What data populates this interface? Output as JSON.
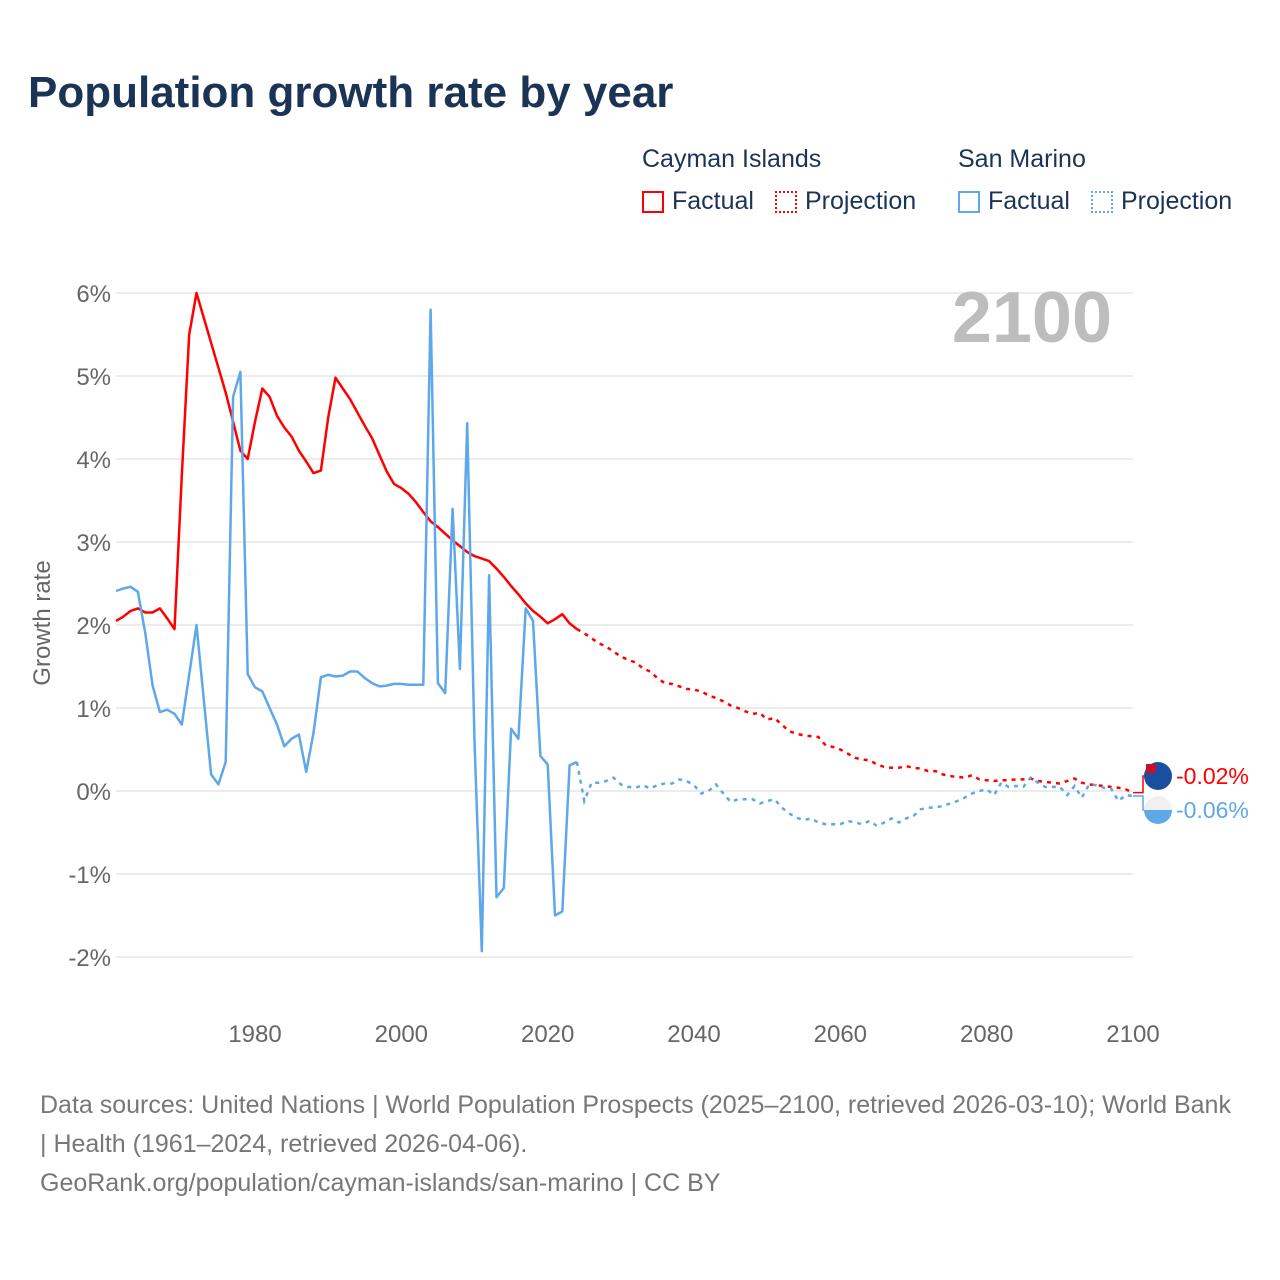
{
  "chart_data": {
    "type": "line",
    "title": "Population growth rate by year",
    "ylabel": "Growth rate",
    "xlabel": "",
    "xlim": [
      1961,
      2100
    ],
    "ylim": [
      -2.4,
      6.2
    ],
    "x_ticks": [
      "1980",
      "2000",
      "2020",
      "2040",
      "2060",
      "2080",
      "2100"
    ],
    "y_ticks": [
      {
        "v": 6,
        "label": "6%"
      },
      {
        "v": 5,
        "label": "5%"
      },
      {
        "v": 4,
        "label": "4%"
      },
      {
        "v": 3,
        "label": "3%"
      },
      {
        "v": 2,
        "label": "2%"
      },
      {
        "v": 1,
        "label": "1%"
      },
      {
        "v": 0,
        "label": "0%"
      },
      {
        "v": -1,
        "label": "-1%"
      },
      {
        "v": -2,
        "label": "-2%"
      }
    ],
    "grid": true,
    "year_watermark": "2100",
    "legend_placement": "top-right",
    "series": [
      {
        "name": "Cayman Islands",
        "color": "#ff0000",
        "end_label": "-0.02%",
        "factual": {
          "label": "Factual",
          "start": 1961,
          "values": [
            2.05,
            2.1,
            2.17,
            2.2,
            2.15,
            2.15,
            2.2,
            2.08,
            1.95,
            3.8,
            5.5,
            6.0,
            5.7,
            5.4,
            5.1,
            4.8,
            4.45,
            4.1,
            4.0,
            4.45,
            4.85,
            4.75,
            4.52,
            4.38,
            4.27,
            4.1,
            3.97,
            3.83,
            3.86,
            4.5,
            4.98,
            4.85,
            4.72,
            4.56,
            4.4,
            4.25,
            4.05,
            3.85,
            3.7,
            3.65,
            3.58,
            3.48,
            3.36,
            3.25,
            3.18,
            3.1,
            3.02,
            2.95,
            2.88,
            2.83,
            2.8,
            2.77,
            2.68,
            2.58,
            2.47,
            2.37,
            2.26,
            2.17,
            2.1,
            2.02,
            2.07,
            2.13,
            2.02,
            1.95
          ]
        },
        "projection": {
          "label": "Projection",
          "start": 2024,
          "values": [
            1.95,
            1.9,
            1.84,
            1.78,
            1.74,
            1.68,
            1.62,
            1.58,
            1.55,
            1.48,
            1.44,
            1.36,
            1.3,
            1.29,
            1.26,
            1.23,
            1.22,
            1.2,
            1.15,
            1.12,
            1.08,
            1.03,
            1.0,
            0.96,
            0.93,
            0.94,
            0.86,
            0.88,
            0.8,
            0.72,
            0.69,
            0.67,
            0.66,
            0.65,
            0.55,
            0.53,
            0.5,
            0.45,
            0.4,
            0.38,
            0.37,
            0.32,
            0.29,
            0.28,
            0.28,
            0.3,
            0.28,
            0.27,
            0.24,
            0.24,
            0.2,
            0.18,
            0.17,
            0.16,
            0.19,
            0.14,
            0.13,
            0.12,
            0.13,
            0.13,
            0.14,
            0.14,
            0.15,
            0.12,
            0.11,
            0.1,
            0.09,
            0.12,
            0.15,
            0.1,
            0.08,
            0.07,
            0.06,
            0.05,
            0.04,
            0.02,
            -0.02
          ]
        }
      },
      {
        "name": "San Marino",
        "color": "#5ea8ea",
        "end_label": "-0.06%",
        "factual": {
          "label": "Factual",
          "start": 1961,
          "values": [
            2.41,
            2.44,
            2.46,
            2.4,
            1.9,
            1.27,
            0.95,
            0.98,
            0.93,
            0.8,
            1.4,
            2.0,
            1.1,
            0.2,
            0.08,
            0.35,
            4.75,
            5.05,
            1.41,
            1.25,
            1.2,
            1.0,
            0.8,
            0.54,
            0.63,
            0.68,
            0.23,
            0.7,
            1.37,
            1.4,
            1.38,
            1.39,
            1.44,
            1.44,
            1.36,
            1.3,
            1.26,
            1.27,
            1.29,
            1.29,
            1.28,
            1.28,
            1.28,
            5.8,
            1.3,
            1.18,
            3.4,
            1.47,
            4.43,
            0.6,
            -1.93,
            2.6,
            -1.28,
            -1.17,
            0.75,
            0.63,
            2.2,
            2.05,
            0.42,
            0.32,
            -1.5,
            -1.45,
            0.31,
            0.35
          ]
        },
        "projection": {
          "label": "Projection",
          "start": 2024,
          "values": [
            0.35,
            -0.12,
            0.1,
            0.1,
            0.12,
            0.16,
            0.08,
            0.05,
            0.04,
            0.07,
            0.03,
            0.07,
            0.09,
            0.09,
            0.14,
            0.12,
            0.07,
            -0.03,
            0.0,
            0.08,
            -0.03,
            -0.13,
            -0.1,
            -0.1,
            -0.1,
            -0.15,
            -0.12,
            -0.1,
            -0.2,
            -0.27,
            -0.32,
            -0.35,
            -0.33,
            -0.38,
            -0.4,
            -0.4,
            -0.4,
            -0.36,
            -0.38,
            -0.4,
            -0.36,
            -0.42,
            -0.38,
            -0.33,
            -0.38,
            -0.33,
            -0.3,
            -0.22,
            -0.2,
            -0.2,
            -0.18,
            -0.15,
            -0.12,
            -0.08,
            -0.03,
            0.0,
            0.02,
            -0.05,
            0.1,
            0.05,
            0.06,
            0.05,
            0.16,
            0.1,
            0.05,
            0.05,
            0.05,
            -0.05,
            0.06,
            -0.08,
            0.08,
            0.07,
            0.04,
            0.03,
            -0.12,
            -0.05,
            -0.06
          ]
        }
      }
    ]
  },
  "legend": {
    "groups": [
      {
        "name": "Cayman Islands",
        "factual": "Factual",
        "projection": "Projection"
      },
      {
        "name": "San Marino",
        "factual": "Factual",
        "projection": "Projection"
      }
    ]
  },
  "footer": {
    "line1": "Data sources: United Nations | World Population Prospects (2025–2100, retrieved 2026-03-10); World Bank | Health (1961–2024, retrieved 2026-04-06).",
    "line2": "GeoRank.org/population/cayman-islands/san-marino | CC BY"
  }
}
